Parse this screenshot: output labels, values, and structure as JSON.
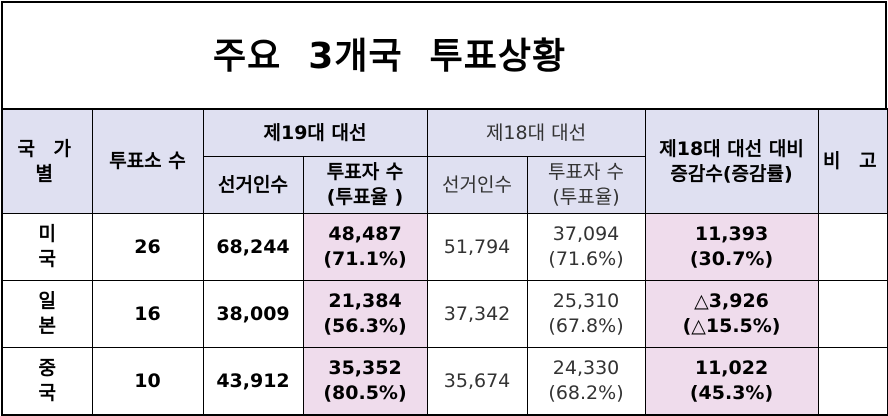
{
  "title": "주요  3개국  투표상황",
  "header": {
    "country": "국 가\n별",
    "stations": "투표소 수",
    "election19": "제19대 대선",
    "election18": "제18대 대선",
    "change": "제18대 대선 대비\n증감수(증감률)",
    "remarks": "비 고",
    "voters19": "선거인수",
    "turnout19": "투표자 수\n(투표율 )",
    "voters18": "선거인수",
    "turnout18": "투표자 수\n(투표율)"
  },
  "rows": [
    {
      "country": "미 국",
      "stations": "26",
      "voters19": "68,244",
      "turnout19": "48,487\n(71.1%)",
      "voters18": "51,794",
      "turnout18": "37,094\n(71.6%)",
      "change": "11,393\n(30.7%)",
      "remarks": ""
    },
    {
      "country": "일 본",
      "stations": "16",
      "voters19": "38,009",
      "turnout19": "21,384\n(56.3%)",
      "voters18": "37,342",
      "turnout18": "25,310\n(67.8%)",
      "change": "△3,926\n(△15.5%)",
      "remarks": ""
    },
    {
      "country": "중 국",
      "stations": "10",
      "voters19": "43,912",
      "turnout19": "35,352\n(80.5%)",
      "voters18": "35,674",
      "turnout18": "24,330\n(68.2%)",
      "change": "11,022\n(45.3%)",
      "remarks": ""
    }
  ],
  "colors": {
    "header_bg": "#dfe0f1",
    "highlight_bg": "#efdcec"
  }
}
